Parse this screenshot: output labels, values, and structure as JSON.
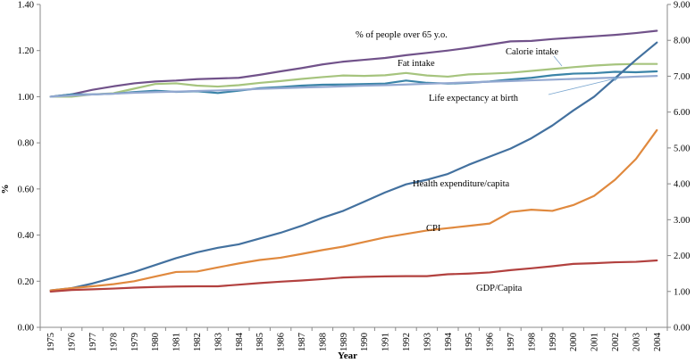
{
  "chart_data": {
    "type": "line",
    "title": "",
    "xlabel": "Year",
    "ylabel_left": "%",
    "ylabel_right": "",
    "ylim_left": [
      0,
      1.4
    ],
    "ylim_right": [
      0,
      9
    ],
    "yticks_left": [
      "0.00",
      "0.20",
      "0.40",
      "0.60",
      "0.80",
      "1.00",
      "1.20",
      "1.40"
    ],
    "yticks_right": [
      "0.00",
      "1.00",
      "2.00",
      "3.00",
      "4.00",
      "5.00",
      "6.00",
      "7.00",
      "8.00",
      "9.00"
    ],
    "x": [
      1975,
      1976,
      1977,
      1978,
      1979,
      1980,
      1981,
      1982,
      1983,
      1984,
      1985,
      1986,
      1987,
      1988,
      1989,
      1990,
      1991,
      1992,
      1993,
      1994,
      1995,
      1996,
      1997,
      1998,
      1999,
      2000,
      2001,
      2002,
      2003,
      2004
    ],
    "series": [
      {
        "name": "% of people over 65 y.o.",
        "color": "#71528a",
        "axis": "left",
        "values": [
          1.0,
          1.01,
          1.03,
          1.045,
          1.058,
          1.066,
          1.07,
          1.076,
          1.079,
          1.082,
          1.095,
          1.11,
          1.124,
          1.14,
          1.152,
          1.16,
          1.168,
          1.18,
          1.19,
          1.2,
          1.212,
          1.226,
          1.24,
          1.242,
          1.25,
          1.256,
          1.262,
          1.268,
          1.276,
          1.286
        ]
      },
      {
        "name": "Calorie intake",
        "color": "#a6c47e",
        "axis": "left",
        "values": [
          1.0,
          1.0,
          1.01,
          1.015,
          1.035,
          1.055,
          1.058,
          1.048,
          1.044,
          1.05,
          1.06,
          1.068,
          1.077,
          1.085,
          1.092,
          1.09,
          1.093,
          1.103,
          1.092,
          1.087,
          1.097,
          1.1,
          1.104,
          1.112,
          1.12,
          1.128,
          1.135,
          1.14,
          1.142,
          1.142
        ]
      },
      {
        "name": "Fat intake",
        "color": "#3b84a8",
        "axis": "left",
        "values": [
          1.0,
          1.01,
          1.01,
          1.013,
          1.02,
          1.026,
          1.021,
          1.024,
          1.016,
          1.026,
          1.037,
          1.042,
          1.048,
          1.052,
          1.053,
          1.055,
          1.057,
          1.07,
          1.06,
          1.057,
          1.06,
          1.066,
          1.075,
          1.082,
          1.093,
          1.1,
          1.102,
          1.108,
          1.106,
          1.11
        ]
      },
      {
        "name": "Life expectancy at birth",
        "color": "#94a9d1",
        "axis": "left",
        "values": [
          1.0,
          1.005,
          1.01,
          1.013,
          1.017,
          1.02,
          1.022,
          1.025,
          1.027,
          1.03,
          1.034,
          1.037,
          1.04,
          1.042,
          1.045,
          1.048,
          1.05,
          1.053,
          1.056,
          1.059,
          1.062,
          1.065,
          1.068,
          1.071,
          1.074,
          1.077,
          1.08,
          1.083,
          1.087,
          1.09
        ]
      },
      {
        "name": "Health expenditure/capita",
        "color": "#43719f",
        "axis": "left",
        "values": [
          0.16,
          0.17,
          0.19,
          0.215,
          0.24,
          0.27,
          0.3,
          0.325,
          0.345,
          0.36,
          0.385,
          0.41,
          0.44,
          0.475,
          0.505,
          0.545,
          0.585,
          0.62,
          0.64,
          0.665,
          0.705,
          0.74,
          0.775,
          0.82,
          0.875,
          0.94,
          1.0,
          1.08,
          1.16,
          1.235
        ]
      },
      {
        "name": "CPI",
        "color": "#e0893e",
        "axis": "left",
        "values": [
          0.16,
          0.17,
          0.178,
          0.187,
          0.2,
          0.22,
          0.24,
          0.242,
          0.26,
          0.277,
          0.292,
          0.302,
          0.318,
          0.335,
          0.35,
          0.37,
          0.39,
          0.405,
          0.42,
          0.43,
          0.44,
          0.45,
          0.5,
          0.51,
          0.505,
          0.53,
          0.57,
          0.64,
          0.73,
          0.855
        ]
      },
      {
        "name": "GDP/Capita",
        "color": "#b2413f",
        "axis": "left",
        "values": [
          0.155,
          0.162,
          0.165,
          0.168,
          0.172,
          0.175,
          0.177,
          0.178,
          0.178,
          0.185,
          0.192,
          0.198,
          0.203,
          0.209,
          0.216,
          0.219,
          0.221,
          0.222,
          0.222,
          0.23,
          0.233,
          0.238,
          0.248,
          0.256,
          0.265,
          0.275,
          0.278,
          0.282,
          0.284,
          0.29
        ]
      }
    ],
    "annotations": {
      "over65": "% of people over 65 y.o.",
      "calorie": "Calorie intake",
      "fat": "Fat intake",
      "life": "Life expectancy at birth",
      "health": "Health expenditure/capita",
      "cpi": "CPI",
      "gdp": "GDP/Capita"
    },
    "grid": false,
    "legend": "none (inline labels)"
  }
}
